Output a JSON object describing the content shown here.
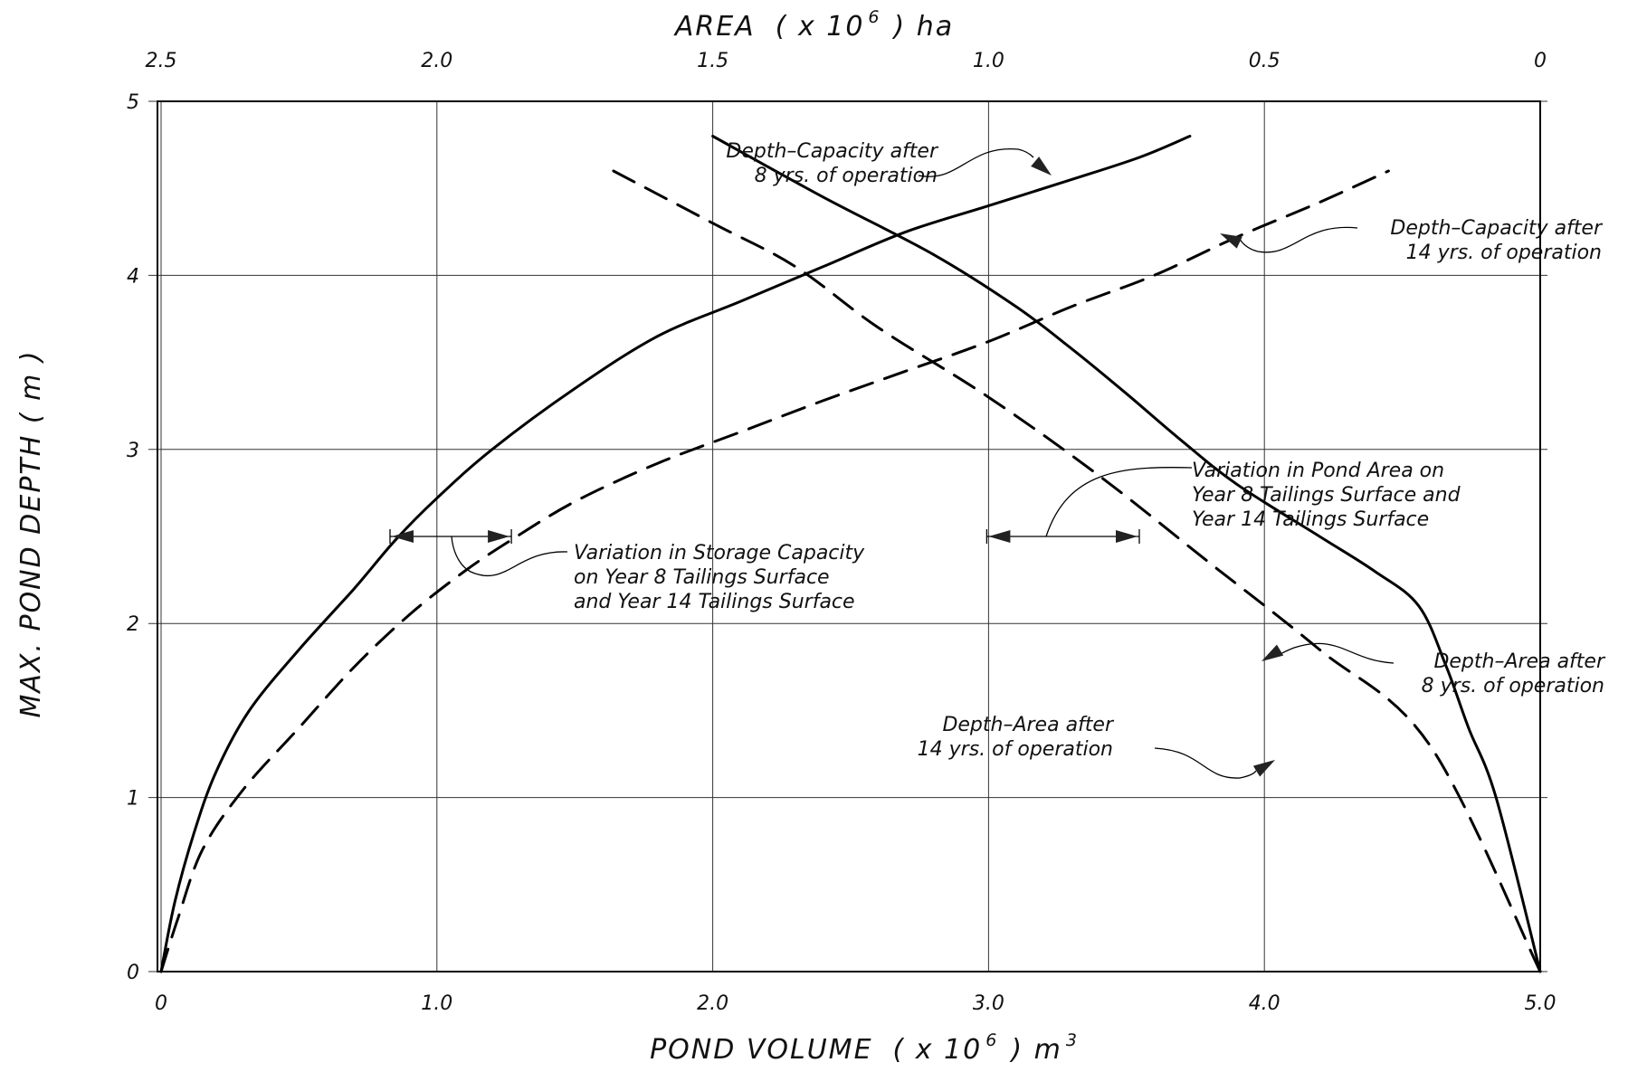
{
  "chart_data": {
    "type": "line",
    "title": "",
    "xlabel": "POND VOLUME",
    "xlabel_mult": "( x 10",
    "xlabel_exp": "6",
    "xlabel_unit": ") m",
    "xlabel_unit_exp": "3",
    "x2label": "AREA",
    "x2label_mult": "( x 10",
    "x2label_exp": "6",
    "x2label_unit": ") ha",
    "ylabel": "MAX. POND DEPTH ( m )",
    "xlim": [
      0,
      5.0
    ],
    "x2lim": [
      2.5,
      0
    ],
    "ylim": [
      0,
      5
    ],
    "grid": true,
    "legend": "none",
    "x_ticks": [
      {
        "value": 0,
        "label": "0"
      },
      {
        "value": 1.0,
        "label": "1.0"
      },
      {
        "value": 2.0,
        "label": "2.0"
      },
      {
        "value": 3.0,
        "label": "3.0"
      },
      {
        "value": 4.0,
        "label": "4.0"
      },
      {
        "value": 5.0,
        "label": "5.0"
      }
    ],
    "x2_ticks": [
      {
        "value": 2.5,
        "label": "2.5"
      },
      {
        "value": 2.0,
        "label": "2.0"
      },
      {
        "value": 1.5,
        "label": "1.5"
      },
      {
        "value": 1.0,
        "label": "1.0"
      },
      {
        "value": 0.5,
        "label": "0.5"
      },
      {
        "value": 0,
        "label": "0"
      }
    ],
    "y_ticks": [
      {
        "value": 0,
        "label": "0"
      },
      {
        "value": 1,
        "label": "1"
      },
      {
        "value": 2,
        "label": "2"
      },
      {
        "value": 3,
        "label": "3"
      },
      {
        "value": 4,
        "label": "4"
      },
      {
        "value": 5,
        "label": "5"
      }
    ],
    "series": [
      {
        "axis": "volume",
        "style": "solid",
        "points": [
          [
            0,
            0
          ],
          [
            0.05,
            0.4
          ],
          [
            0.12,
            0.8
          ],
          [
            0.2,
            1.15
          ],
          [
            0.32,
            1.5
          ],
          [
            0.5,
            1.85
          ],
          [
            0.7,
            2.2
          ],
          [
            0.85,
            2.48
          ],
          [
            1.0,
            2.72
          ],
          [
            1.2,
            3.0
          ],
          [
            1.5,
            3.35
          ],
          [
            1.8,
            3.65
          ],
          [
            2.1,
            3.85
          ],
          [
            2.4,
            4.05
          ],
          [
            2.7,
            4.25
          ],
          [
            3.0,
            4.4
          ],
          [
            3.3,
            4.55
          ],
          [
            3.55,
            4.68
          ],
          [
            3.73,
            4.8
          ]
        ]
      },
      {
        "axis": "volume",
        "style": "dashed",
        "points": [
          [
            0,
            0
          ],
          [
            0.06,
            0.3
          ],
          [
            0.15,
            0.7
          ],
          [
            0.3,
            1.05
          ],
          [
            0.5,
            1.4
          ],
          [
            0.7,
            1.75
          ],
          [
            0.9,
            2.05
          ],
          [
            1.1,
            2.3
          ],
          [
            1.27,
            2.48
          ],
          [
            1.5,
            2.7
          ],
          [
            1.8,
            2.92
          ],
          [
            2.1,
            3.1
          ],
          [
            2.4,
            3.28
          ],
          [
            2.7,
            3.45
          ],
          [
            3.0,
            3.62
          ],
          [
            3.3,
            3.82
          ],
          [
            3.6,
            4.0
          ],
          [
            3.9,
            4.22
          ],
          [
            4.2,
            4.42
          ],
          [
            4.45,
            4.6
          ]
        ]
      },
      {
        "axis": "area",
        "style": "solid",
        "points": [
          [
            1.5,
            4.8
          ],
          [
            1.3,
            4.45
          ],
          [
            1.1,
            4.12
          ],
          [
            0.95,
            3.82
          ],
          [
            0.85,
            3.58
          ],
          [
            0.75,
            3.32
          ],
          [
            0.65,
            3.05
          ],
          [
            0.55,
            2.8
          ],
          [
            0.4,
            2.5
          ],
          [
            0.3,
            2.3
          ],
          [
            0.22,
            2.1
          ],
          [
            0.17,
            1.75
          ],
          [
            0.13,
            1.4
          ],
          [
            0.08,
            1.0
          ],
          [
            0.0,
            0
          ]
        ]
      },
      {
        "axis": "area",
        "style": "dashed",
        "points": [
          [
            1.68,
            4.6
          ],
          [
            1.5,
            4.3
          ],
          [
            1.35,
            4.05
          ],
          [
            1.2,
            3.7
          ],
          [
            1.0,
            3.3
          ],
          [
            0.8,
            2.85
          ],
          [
            0.6,
            2.35
          ],
          [
            0.4,
            1.85
          ],
          [
            0.2,
            1.3
          ],
          [
            0.0,
            0
          ]
        ]
      }
    ],
    "annotations": [
      {
        "lines": [
          "Depth–Capacity after",
          "8 yrs. of operation"
        ]
      },
      {
        "lines": [
          "Depth–Capacity after",
          "14 yrs. of operation"
        ]
      },
      {
        "lines": [
          "Variation in Pond Area on",
          "Year 8 Tailings Surface and",
          "Year 14 Tailings Surface"
        ]
      },
      {
        "lines": [
          "Variation in Storage Capacity",
          "on Year 8 Tailings Surface",
          "and Year 14 Tailings Surface"
        ]
      },
      {
        "lines": [
          "Depth–Area after",
          "8 yrs. of operation"
        ]
      },
      {
        "lines": [
          "Depth–Area after",
          "14 yrs. of operation"
        ]
      }
    ]
  }
}
